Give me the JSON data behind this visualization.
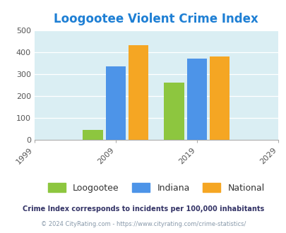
{
  "title": "Loogootee Violent Crime Index",
  "title_color": "#1e7fd4",
  "figure_bg_color": "#ffffff",
  "plot_bg_color": "#daeef3",
  "years": [
    2009,
    2019
  ],
  "loogootee_values": [
    45,
    260
  ],
  "indiana_values": [
    335,
    370
  ],
  "national_values": [
    433,
    381
  ],
  "loogootee_color": "#8dc63f",
  "indiana_color": "#4d94e8",
  "national_color": "#f5a623",
  "xlim": [
    1999,
    2029
  ],
  "ylim": [
    0,
    500
  ],
  "yticks": [
    0,
    100,
    200,
    300,
    400,
    500
  ],
  "xticks": [
    1999,
    2009,
    2019,
    2029
  ],
  "bar_width": 2.8,
  "legend_labels": [
    "Loogootee",
    "Indiana",
    "National"
  ],
  "footnote1": "Crime Index corresponds to incidents per 100,000 inhabitants",
  "footnote2": "© 2024 CityRating.com - https://www.cityrating.com/crime-statistics/",
  "footnote1_color": "#333366",
  "footnote2_color": "#8899aa"
}
